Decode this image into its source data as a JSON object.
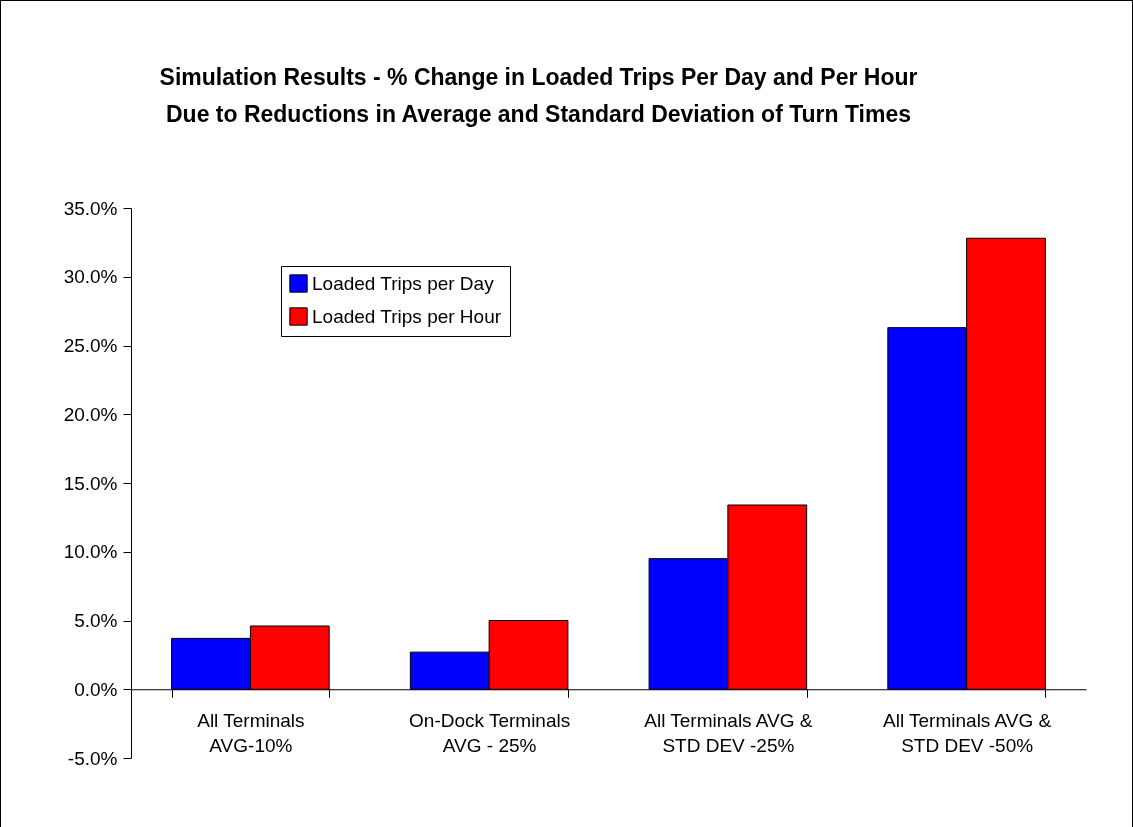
{
  "chart_data": {
    "type": "bar",
    "title": "Simulation Results - % Change in Loaded Trips Per Day and Per Hour Due to Reductions in Average and Standard Deviation of Turn Times",
    "categories": [
      "All Terminals AVG-10%",
      "On-Dock Terminals AVG - 25%",
      "All Terminals AVG & STD DEV -25%",
      "All Terminals AVG & STD DEV -50%"
    ],
    "series": [
      {
        "name": "Loaded Trips per Day",
        "color": "#0000ff",
        "values": [
          3.7,
          2.7,
          9.5,
          26.3
        ]
      },
      {
        "name": "Loaded Trips per Hour",
        "color": "#ff0000",
        "values": [
          4.6,
          5.0,
          13.4,
          32.8
        ]
      }
    ],
    "ylim": [
      -5,
      35
    ],
    "yticks": [
      {
        "value": -5,
        "label": "-5.0%"
      },
      {
        "value": 0,
        "label": "0.0%"
      },
      {
        "value": 5,
        "label": "5.0%"
      },
      {
        "value": 10,
        "label": "10.0%"
      },
      {
        "value": 15,
        "label": "15.0%"
      },
      {
        "value": 20,
        "label": "20.0%"
      },
      {
        "value": 25,
        "label": "25.0%"
      },
      {
        "value": 30,
        "label": "30.0%"
      },
      {
        "value": 35,
        "label": "35.0%"
      }
    ],
    "grid": false,
    "legend": "top left"
  }
}
